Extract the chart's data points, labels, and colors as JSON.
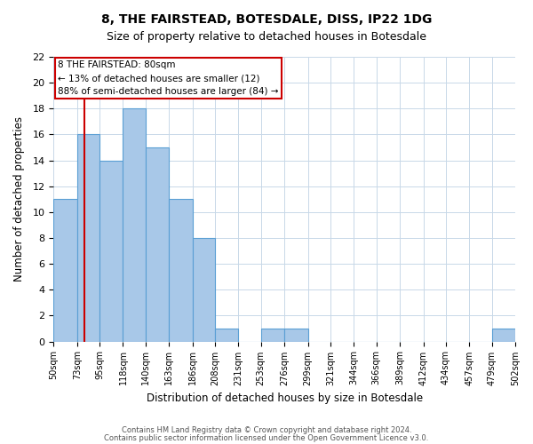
{
  "title": "8, THE FAIRSTEAD, BOTESDALE, DISS, IP22 1DG",
  "subtitle": "Size of property relative to detached houses in Botesdale",
  "xlabel": "Distribution of detached houses by size in Botesdale",
  "ylabel": "Number of detached properties",
  "bar_edges": [
    50,
    73,
    95,
    118,
    140,
    163,
    186,
    208,
    231,
    253,
    276,
    299,
    321,
    344,
    366,
    389,
    412,
    434,
    457,
    479,
    502
  ],
  "bar_heights": [
    11,
    16,
    14,
    18,
    15,
    11,
    8,
    1,
    0,
    1,
    1,
    0,
    0,
    0,
    0,
    0,
    0,
    0,
    0,
    1
  ],
  "bar_color": "#a8c8e8",
  "bar_edge_color": "#5a9fd4",
  "red_line_x": 80,
  "ylim": [
    0,
    22
  ],
  "yticks": [
    0,
    2,
    4,
    6,
    8,
    10,
    12,
    14,
    16,
    18,
    20,
    22
  ],
  "annotation_title": "8 THE FAIRSTEAD: 80sqm",
  "annotation_line1": "← 13% of detached houses are smaller (12)",
  "annotation_line2": "88% of semi-detached houses are larger (84) →",
  "annotation_box_color": "#ffffff",
  "annotation_box_edge": "#cc0000",
  "footer_line1": "Contains HM Land Registry data © Crown copyright and database right 2024.",
  "footer_line2": "Contains public sector information licensed under the Open Government Licence v3.0.",
  "x_tick_labels": [
    "50sqm",
    "73sqm",
    "95sqm",
    "118sqm",
    "140sqm",
    "163sqm",
    "186sqm",
    "208sqm",
    "231sqm",
    "253sqm",
    "276sqm",
    "299sqm",
    "321sqm",
    "344sqm",
    "366sqm",
    "389sqm",
    "412sqm",
    "434sqm",
    "457sqm",
    "479sqm",
    "502sqm"
  ]
}
